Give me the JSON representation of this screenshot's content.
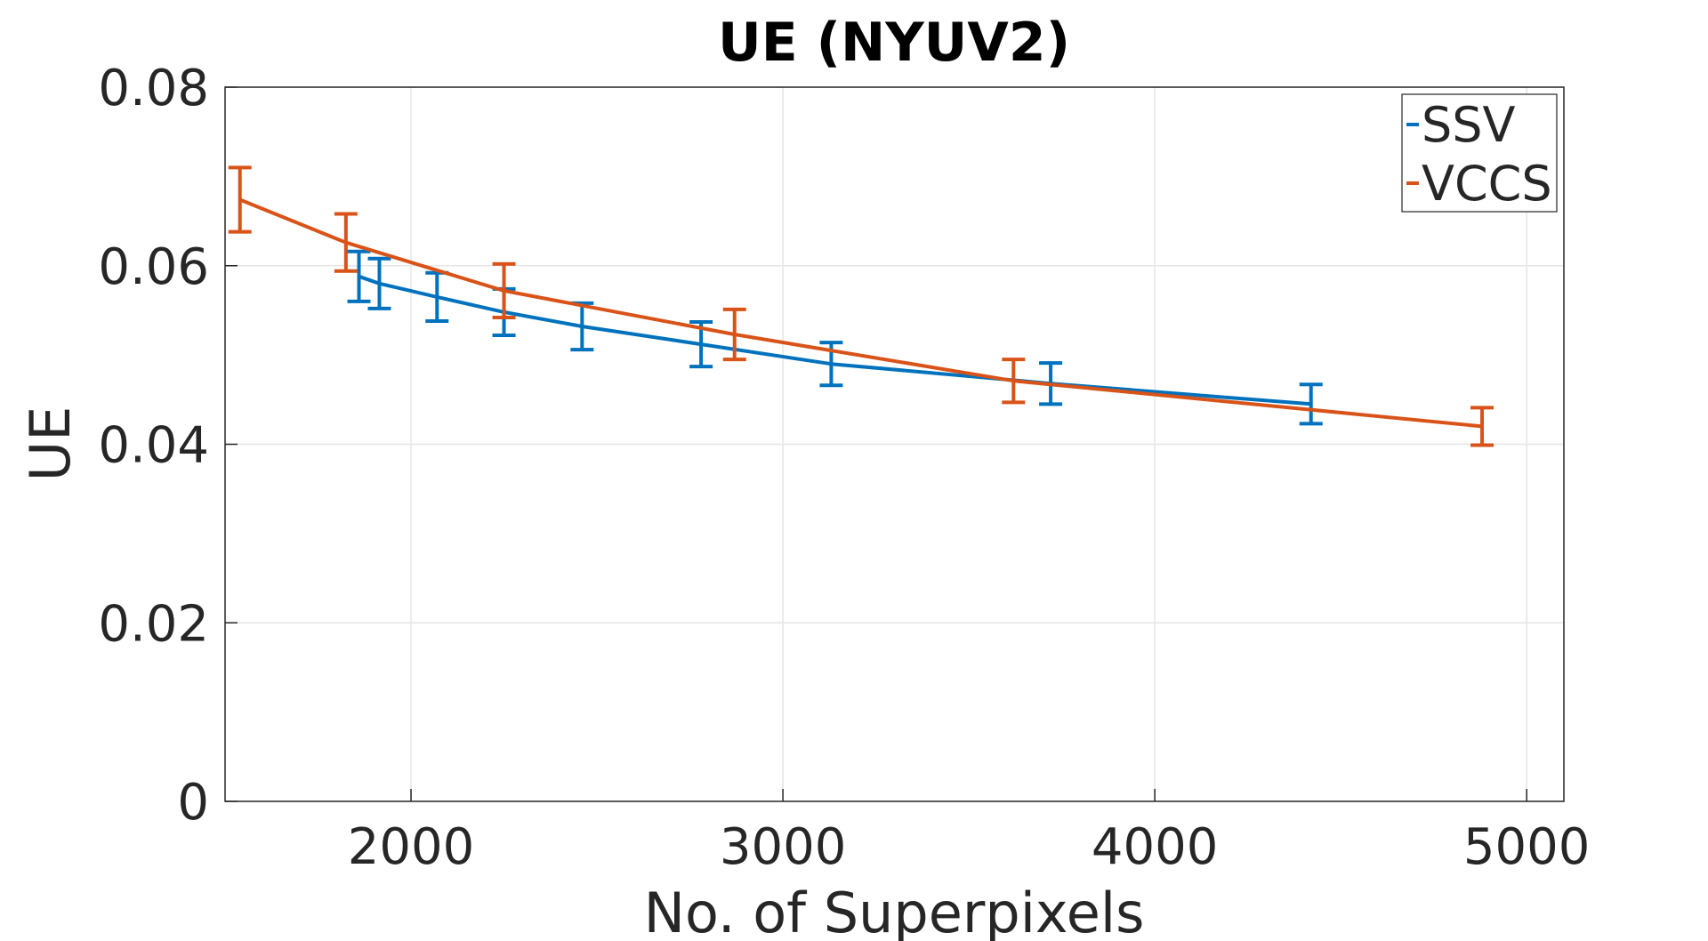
{
  "chart_data": {
    "type": "line",
    "title": "UE (NYUV2)",
    "xlabel": "No. of Superpixels",
    "ylabel": "UE",
    "xlim": [
      1500,
      5100
    ],
    "ylim": [
      0,
      0.08
    ],
    "xticks": [
      2000,
      3000,
      4000,
      5000
    ],
    "xtick_labels": [
      "2000",
      "3000",
      "4000",
      "5000"
    ],
    "yticks": [
      0,
      0.02,
      0.04,
      0.06,
      0.08
    ],
    "ytick_labels": [
      "0",
      "0.02",
      "0.04",
      "0.06",
      "0.08"
    ],
    "grid": true,
    "legend_position": "top-right",
    "series": [
      {
        "name": "SSV",
        "color": "#0072BD",
        "x": [
          1860,
          1915,
          2070,
          2250,
          2460,
          2780,
          3130,
          3720,
          4420
        ],
        "y": [
          0.0588,
          0.058,
          0.0565,
          0.0548,
          0.0532,
          0.0512,
          0.049,
          0.0468,
          0.0445
        ],
        "err": [
          0.0028,
          0.0028,
          0.0027,
          0.0026,
          0.0026,
          0.0025,
          0.0024,
          0.0023,
          0.0022
        ]
      },
      {
        "name": "VCCS",
        "color": "#D95319",
        "x": [
          1540,
          1825,
          2250,
          2870,
          3620,
          4880
        ],
        "y": [
          0.0674,
          0.0626,
          0.0572,
          0.0523,
          0.0471,
          0.042
        ],
        "err": [
          0.0036,
          0.0032,
          0.003,
          0.0028,
          0.0024,
          0.0021
        ]
      }
    ]
  }
}
